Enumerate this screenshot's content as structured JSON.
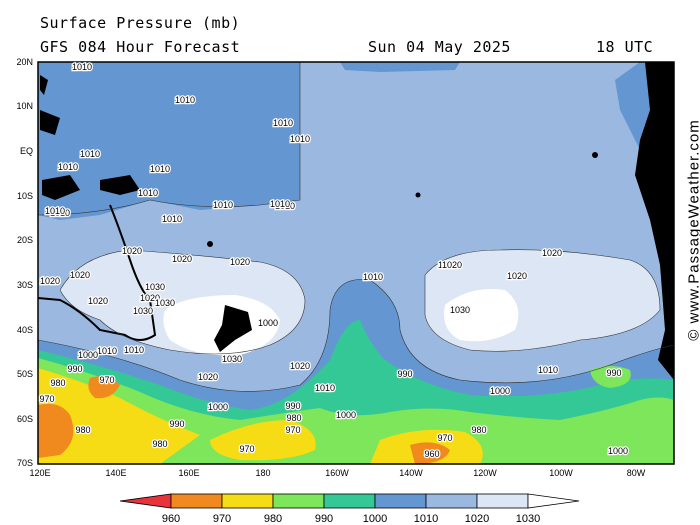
{
  "header": {
    "title": "Surface Pressure (mb)",
    "subtitle": "GFS 084 Hour Forecast",
    "date": "Sun 04 May 2025",
    "time": "18 UTC"
  },
  "credit": "© www.PassageWeather.com",
  "lat_labels": [
    "20N",
    "10N",
    "EQ",
    "10S",
    "20S",
    "30S",
    "40S",
    "50S",
    "60S",
    "70S"
  ],
  "lon_labels": [
    "120E",
    "140E",
    "160E",
    "180",
    "160W",
    "140W",
    "120W",
    "100W",
    "80W"
  ],
  "legend": {
    "ticks": [
      "960",
      "970",
      "980",
      "990",
      "1000",
      "1010",
      "1020",
      "1030"
    ],
    "colors": [
      "#e8323c",
      "#f08a1e",
      "#f5dc14",
      "#7de65a",
      "#34c896",
      "#6496d2",
      "#9bb9e0",
      "#dce6f5",
      "#ffffff"
    ]
  },
  "isobar_labels": [
    {
      "text": "1010"
    },
    {
      "text": "1010"
    },
    {
      "text": "1010"
    },
    {
      "text": "1010"
    },
    {
      "text": "1010"
    },
    {
      "text": "1010"
    },
    {
      "text": "1010"
    },
    {
      "text": "1010"
    },
    {
      "text": "1010"
    },
    {
      "text": "1010"
    },
    {
      "text": "1010"
    },
    {
      "text": "1010"
    },
    {
      "text": "1020"
    },
    {
      "text": "1020"
    },
    {
      "text": "1020"
    },
    {
      "text": "1020"
    },
    {
      "text": "1020"
    },
    {
      "text": "1020"
    },
    {
      "text": "1020"
    },
    {
      "text": "1030"
    },
    {
      "text": "1030"
    },
    {
      "text": "1030"
    },
    {
      "text": "1030"
    },
    {
      "text": "1030"
    },
    {
      "text": "1020"
    },
    {
      "text": "1020"
    },
    {
      "text": "1010"
    },
    {
      "text": "1010"
    },
    {
      "text": "1020"
    },
    {
      "text": "1020"
    },
    {
      "text": "1020"
    },
    {
      "text": "1010"
    },
    {
      "text": "1000"
    },
    {
      "text": "1000"
    },
    {
      "text": "1000"
    },
    {
      "text": "990"
    },
    {
      "text": "990"
    },
    {
      "text": "990"
    },
    {
      "text": "990"
    },
    {
      "text": "980"
    },
    {
      "text": "980"
    },
    {
      "text": "980"
    },
    {
      "text": "980"
    },
    {
      "text": "970"
    },
    {
      "text": "970"
    },
    {
      "text": "970"
    },
    {
      "text": "970"
    },
    {
      "text": "970"
    },
    {
      "text": "960"
    },
    {
      "text": "980"
    },
    {
      "text": "1000"
    },
    {
      "text": "1000"
    },
    {
      "text": "1010"
    },
    {
      "text": "990"
    },
    {
      "text": "1000"
    },
    {
      "text": "1020"
    },
    {
      "text": "1020"
    },
    {
      "text": "1010"
    },
    {
      "text": "1010"
    },
    {
      "text": "1010"
    }
  ]
}
